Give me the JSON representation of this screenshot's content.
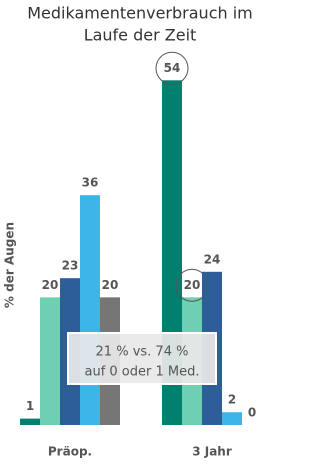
{
  "chart_data": {
    "type": "bar",
    "title": [
      "Medikamentenverbrauch im",
      "Laufe der Zeit"
    ],
    "y_label": "% der Augen",
    "categories": [
      "Präop.",
      "3 Jahr"
    ],
    "series": [
      {
        "color": "#00806e",
        "values": [
          1,
          54
        ],
        "circled": [
          false,
          true
        ]
      },
      {
        "color": "#6fcfb2",
        "values": [
          20,
          20
        ],
        "circled": [
          false,
          true
        ]
      },
      {
        "color": "#2d5e98",
        "values": [
          23,
          24
        ],
        "circled": [
          false,
          false
        ]
      },
      {
        "color": "#3db5e8",
        "values": [
          36,
          2
        ],
        "circled": [
          false,
          false
        ]
      },
      {
        "color": "#767676",
        "values": [
          20,
          0
        ],
        "circled": [
          false,
          false
        ]
      }
    ],
    "ylim": [
      0,
      60
    ],
    "annotation": [
      "21 % vs. 74 %",
      "auf 0 oder 1 Med."
    ]
  }
}
